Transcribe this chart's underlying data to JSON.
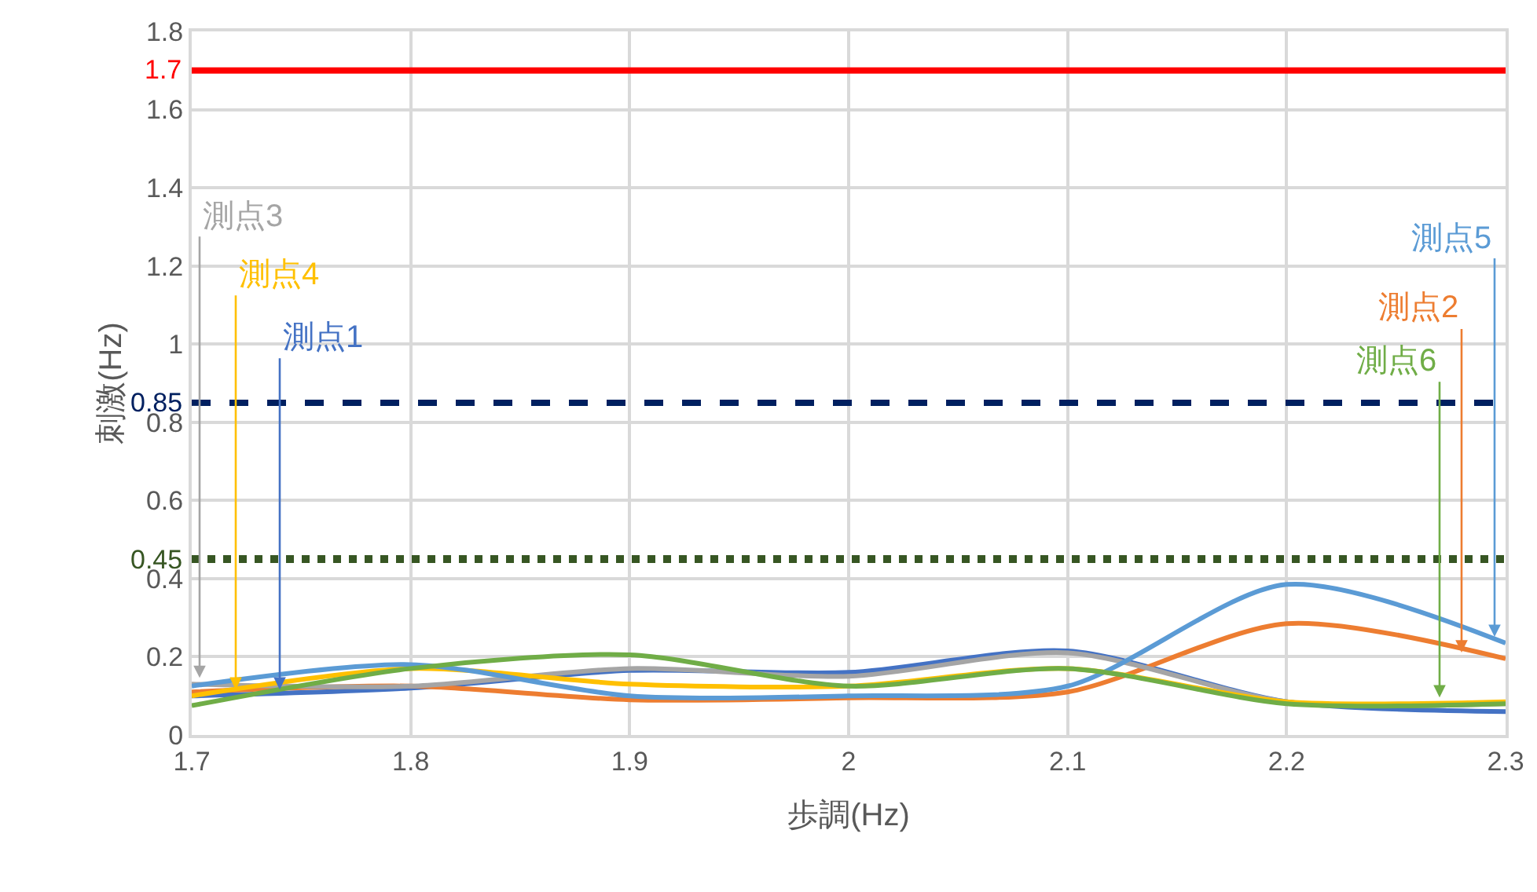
{
  "chart_data": {
    "type": "line",
    "xlabel": "歩調(Hz)",
    "ylabel": "刺激(Hz)",
    "x": [
      1.7,
      1.8,
      1.9,
      2.0,
      2.1,
      2.2,
      2.3
    ],
    "series": [
      {
        "name": "測点1",
        "color": "#4472c4",
        "values": [
          0.1,
          0.12,
          0.165,
          0.16,
          0.215,
          0.085,
          0.06
        ]
      },
      {
        "name": "測点2",
        "color": "#ed7d31",
        "values": [
          0.11,
          0.125,
          0.09,
          0.095,
          0.11,
          0.285,
          0.195
        ]
      },
      {
        "name": "測点3",
        "color": "#a5a5a5",
        "values": [
          0.13,
          0.125,
          0.17,
          0.15,
          0.21,
          0.085,
          0.08
        ]
      },
      {
        "name": "測点4",
        "color": "#ffc000",
        "values": [
          0.1,
          0.17,
          0.13,
          0.125,
          0.17,
          0.085,
          0.085
        ]
      },
      {
        "name": "測点5",
        "color": "#5b9bd5",
        "values": [
          0.125,
          0.18,
          0.1,
          0.1,
          0.125,
          0.385,
          0.235
        ]
      },
      {
        "name": "測点6",
        "color": "#70ad47",
        "values": [
          0.075,
          0.17,
          0.205,
          0.125,
          0.17,
          0.08,
          0.08
        ]
      }
    ],
    "xlim": [
      1.7,
      2.3
    ],
    "xticks": [
      1.7,
      1.8,
      1.9,
      2,
      2.1,
      2.2,
      2.3
    ],
    "ylim": [
      0,
      1.8
    ],
    "yticks": [
      0,
      0.2,
      0.4,
      0.6,
      0.8,
      1,
      1.2,
      1.4,
      1.6,
      1.8
    ],
    "grid": true,
    "legend": false,
    "marker": "none",
    "line_style": "solid",
    "ref_lines": [
      {
        "axis": "y",
        "value": 1.7,
        "label": "1.7",
        "color": "#ff0000",
        "line_style": "solid"
      },
      {
        "axis": "y",
        "value": 0.85,
        "label": "0.85",
        "color": "#002060",
        "line_style": "dashed"
      },
      {
        "axis": "y",
        "value": 0.45,
        "label": "0.45",
        "color": "#375623",
        "line_style": "dotted"
      }
    ]
  }
}
